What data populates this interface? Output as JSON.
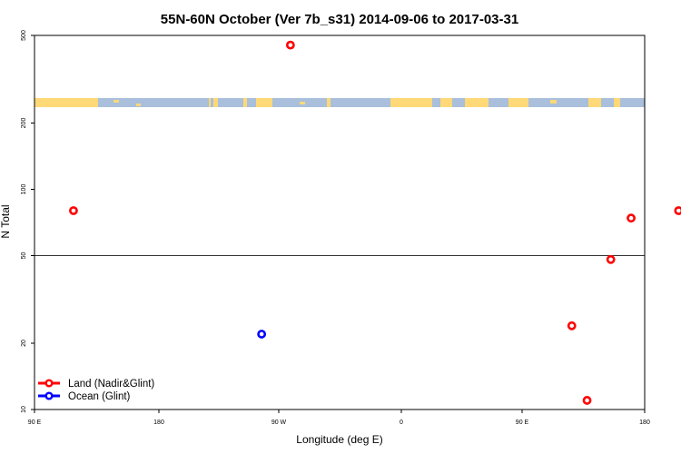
{
  "chart_data": {
    "type": "scatter",
    "title": "55N-60N October (Ver 7b_s31)   2014-09-06 to 2017-03-31",
    "xlabel": "Longitude (deg E)",
    "ylabel": "N Total",
    "xlim": [
      90,
      450
    ],
    "ylim": [
      10,
      500
    ],
    "y_scale": "log",
    "x_ticks": [
      90,
      180,
      270,
      360,
      450,
      540
    ],
    "x_tick_labels": [
      "90 E",
      "180",
      "90 W",
      "0",
      "90 E",
      "180"
    ],
    "y_ticks": [
      10,
      20,
      50,
      100,
      200,
      500
    ],
    "y_tick_labels": [
      "10",
      "20",
      "50",
      "100",
      "200",
      "500"
    ],
    "reference_line_y": 50,
    "legend_position": "bottom-left",
    "series": [
      {
        "name": "Land (Nadir&Glint)",
        "color": "#ff0000",
        "points": [
          {
            "x": 113,
            "y": 80
          },
          {
            "x": 241,
            "y": 452
          },
          {
            "x": 407,
            "y": 24
          },
          {
            "x": 416,
            "y": 11
          },
          {
            "x": 430,
            "y": 48
          },
          {
            "x": 442,
            "y": 74
          },
          {
            "x": 470,
            "y": 80
          }
        ]
      },
      {
        "name": "Ocean (Glint)",
        "color": "#0000ff",
        "points": [
          {
            "x": 224,
            "y": 22
          }
        ]
      }
    ],
    "map_strip": {
      "land_color": "#ffd977",
      "ocean_color": "#a9bfdc"
    }
  }
}
